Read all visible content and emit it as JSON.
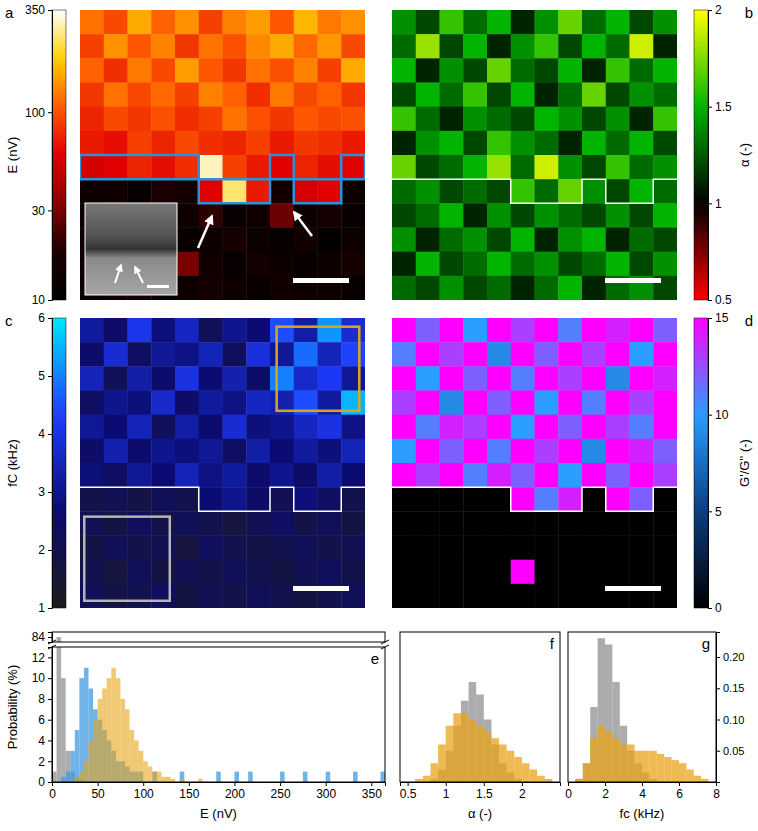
{
  "chart_data": [
    {
      "type": "heatmap",
      "panel": "a",
      "colorbar": {
        "label": "E (nV)",
        "range": [
          10,
          350
        ],
        "ticks": [
          10,
          30,
          100,
          350
        ],
        "log": true
      },
      "cells": [
        [
          120,
          95,
          160,
          110,
          140,
          90,
          130,
          150,
          105,
          170,
          125,
          140
        ],
        [
          90,
          140,
          105,
          130,
          85,
          120,
          100,
          135,
          160,
          115,
          145,
          95
        ],
        [
          110,
          80,
          125,
          95,
          150,
          105,
          85,
          120,
          100,
          130,
          90,
          160
        ],
        [
          85,
          120,
          95,
          115,
          90,
          130,
          110,
          80,
          125,
          95,
          110,
          85
        ],
        [
          75,
          95,
          85,
          100,
          80,
          90,
          120,
          100,
          85,
          105,
          95,
          100
        ],
        [
          70,
          65,
          90,
          75,
          95,
          80,
          75,
          90,
          70,
          85,
          80,
          70
        ],
        [
          55,
          60,
          75,
          65,
          80,
          300,
          90,
          70,
          60,
          75,
          65,
          60
        ],
        [
          14,
          15,
          12,
          18,
          16,
          60,
          250,
          70,
          15,
          55,
          60,
          14
        ],
        [
          12,
          15,
          18,
          13,
          14,
          20,
          12,
          15,
          28,
          13,
          16,
          12
        ],
        [
          15,
          11,
          13,
          16,
          12,
          14,
          17,
          13,
          12,
          15,
          11,
          14
        ],
        [
          13,
          16,
          12,
          14,
          30,
          15,
          12,
          16,
          13,
          12,
          14,
          17
        ],
        [
          12,
          14,
          15,
          12,
          13,
          16,
          14,
          12,
          15,
          14,
          13,
          12
        ]
      ]
    },
    {
      "type": "heatmap",
      "panel": "b",
      "colorbar": {
        "label": "α (-)",
        "range": [
          0.5,
          2
        ],
        "ticks": [
          0.5,
          1,
          1.5,
          2
        ]
      },
      "cells": [
        [
          1.4,
          1.2,
          1.6,
          1.3,
          1.5,
          1.1,
          1.4,
          1.7,
          1.3,
          1.5,
          1.2,
          1.4
        ],
        [
          1.3,
          1.8,
          1.2,
          1.5,
          1.1,
          1.4,
          1.6,
          1.2,
          1.5,
          1.3,
          1.9,
          1.1
        ],
        [
          1.5,
          1.1,
          1.4,
          1.2,
          1.7,
          1.3,
          1.2,
          1.5,
          1.1,
          1.6,
          1.3,
          1.5
        ],
        [
          1.2,
          1.5,
          1.3,
          1.6,
          1.2,
          1.5,
          1.1,
          1.3,
          1.7,
          1.2,
          1.4,
          1.3
        ],
        [
          1.6,
          1.3,
          1.1,
          1.4,
          1.3,
          1.2,
          1.5,
          1.4,
          1.2,
          1.4,
          1.1,
          1.6
        ],
        [
          1.1,
          1.4,
          1.5,
          1.2,
          1.6,
          1.4,
          1.3,
          1.1,
          1.5,
          1.3,
          1.5,
          1.2
        ],
        [
          1.7,
          1.2,
          1.3,
          1.5,
          1.8,
          1.3,
          1.9,
          1.4,
          1.2,
          1.6,
          1.3,
          1.4
        ],
        [
          1.3,
          1.4,
          1.2,
          1.3,
          1.2,
          1.6,
          1.3,
          1.7,
          1.4,
          1.2,
          1.5,
          1.3
        ],
        [
          1.2,
          1.3,
          1.5,
          1.1,
          1.4,
          1.2,
          1.4,
          1.3,
          1.2,
          1.4,
          1.2,
          1.5
        ],
        [
          1.4,
          1.1,
          1.3,
          1.4,
          1.2,
          1.5,
          1.1,
          1.4,
          1.5,
          1.1,
          1.3,
          1.2
        ],
        [
          1.1,
          1.5,
          1.2,
          1.3,
          1.5,
          1.3,
          1.4,
          1.2,
          1.3,
          1.5,
          1.2,
          1.4
        ],
        [
          1.3,
          1.2,
          1.4,
          1.2,
          1.3,
          1.1,
          1.3,
          1.5,
          1.1,
          1.3,
          1.4,
          1.2
        ]
      ]
    },
    {
      "type": "heatmap",
      "panel": "c",
      "colorbar": {
        "label": "fC (kHz)",
        "range": [
          1,
          6
        ],
        "ticks": [
          1,
          2,
          3,
          4,
          5,
          6
        ]
      },
      "cells": [
        [
          3.2,
          2.5,
          4.1,
          2.8,
          3.6,
          2.2,
          3.0,
          2.7,
          4.5,
          3.3,
          5.2,
          3.8
        ],
        [
          2.6,
          3.8,
          2.4,
          3.1,
          2.9,
          3.5,
          2.3,
          3.9,
          3.1,
          4.8,
          3.5,
          4.4
        ],
        [
          3.5,
          2.2,
          3.3,
          2.6,
          4.0,
          2.7,
          3.4,
          2.5,
          5.0,
          3.7,
          4.2,
          3.1
        ],
        [
          2.4,
          3.0,
          2.8,
          3.7,
          2.5,
          3.2,
          2.9,
          3.6,
          3.4,
          4.5,
          3.2,
          5.5
        ],
        [
          3.1,
          2.7,
          3.5,
          2.3,
          3.3,
          2.6,
          3.8,
          2.8,
          3.0,
          3.6,
          4.0,
          2.9
        ],
        [
          2.5,
          3.4,
          2.6,
          3.0,
          2.8,
          3.1,
          2.4,
          3.3,
          2.7,
          3.2,
          2.8,
          3.5
        ],
        [
          2.8,
          2.4,
          3.1,
          2.7,
          3.5,
          2.9,
          3.2,
          2.6,
          3.0,
          2.5,
          3.3,
          2.7
        ],
        [
          1.9,
          2.1,
          1.8,
          2.2,
          2.0,
          2.7,
          3.0,
          2.5,
          2.1,
          2.8,
          2.4,
          2.0
        ],
        [
          2.1,
          1.8,
          2.3,
          1.9,
          2.2,
          2.0,
          1.7,
          2.1,
          2.4,
          1.9,
          2.2,
          1.8
        ],
        [
          1.8,
          2.2,
          1.9,
          2.1,
          1.7,
          2.3,
          2.0,
          1.8,
          2.0,
          2.2,
          1.9,
          2.1
        ],
        [
          2.0,
          1.7,
          2.2,
          1.8,
          2.1,
          1.9,
          2.2,
          2.0,
          1.8,
          2.1,
          2.3,
          1.9
        ],
        [
          2.2,
          1.9,
          2.0,
          2.3,
          1.8,
          2.1,
          1.9,
          2.2,
          2.0,
          1.8,
          2.0,
          2.2
        ]
      ]
    },
    {
      "type": "heatmap",
      "panel": "d",
      "colorbar": {
        "label": "G'/G'' (-)",
        "range": [
          0,
          15
        ],
        "ticks": [
          0,
          5,
          10,
          15
        ]
      },
      "cells": [
        [
          15,
          12,
          15,
          10,
          15,
          13,
          15,
          11,
          15,
          14,
          15,
          12
        ],
        [
          11,
          15,
          13,
          15,
          9,
          15,
          12,
          15,
          13,
          15,
          10,
          15
        ],
        [
          15,
          10,
          15,
          12,
          15,
          11,
          15,
          13,
          15,
          9,
          15,
          14
        ],
        [
          13,
          15,
          9,
          15,
          12,
          15,
          10,
          15,
          11,
          15,
          13,
          15
        ],
        [
          15,
          11,
          14,
          13,
          15,
          10,
          15,
          12,
          15,
          13,
          11,
          15
        ],
        [
          10,
          15,
          12,
          15,
          11,
          15,
          13,
          15,
          9,
          15,
          14,
          12
        ],
        [
          15,
          13,
          15,
          11,
          14,
          12,
          15,
          10,
          15,
          12,
          15,
          13
        ],
        [
          0,
          0,
          0,
          0,
          0,
          15,
          11,
          14,
          0,
          15,
          12,
          0
        ],
        [
          0,
          0,
          0,
          0,
          0,
          0,
          0,
          0,
          0,
          0,
          0,
          0
        ],
        [
          0,
          0,
          0,
          0,
          0,
          0,
          0,
          0,
          0,
          0,
          0,
          0
        ],
        [
          0,
          0,
          0,
          0,
          0,
          15,
          0,
          0,
          0,
          0,
          0,
          0
        ],
        [
          0,
          0,
          0,
          0,
          0,
          0,
          0,
          0,
          0,
          0,
          0,
          0
        ]
      ]
    },
    {
      "type": "histogram",
      "panel": "e",
      "x_label": "E (nV)",
      "y_label": "Probability (%)",
      "bins": [
        0,
        5,
        10,
        15,
        20,
        25,
        30,
        35,
        40,
        45,
        50,
        55,
        60,
        65,
        70,
        75,
        80,
        85,
        90,
        95,
        100,
        105,
        110,
        115,
        120,
        125,
        130,
        135,
        140,
        145,
        150,
        155,
        160,
        165,
        170,
        175,
        180,
        185,
        190,
        195,
        200,
        205,
        210,
        215,
        220,
        225,
        230,
        235,
        240,
        245,
        250,
        255,
        260,
        265,
        270,
        275,
        280,
        285,
        290,
        295,
        300,
        305,
        310,
        315,
        320,
        325,
        330,
        335,
        340,
        345,
        350,
        355,
        360,
        365
      ],
      "series": [
        {
          "color": "#9e9e9e",
          "values": [
            1,
            84,
            10,
            3,
            1,
            0.5,
            0.3,
            0,
            0,
            0,
            0,
            0,
            0,
            0,
            0,
            0,
            0,
            0,
            0,
            0,
            0,
            0,
            0,
            0,
            0,
            0,
            0,
            0,
            0,
            0,
            0,
            0,
            0,
            0,
            0,
            0,
            0,
            0,
            0,
            0,
            0,
            0,
            0,
            0,
            0,
            0,
            0,
            0,
            0,
            0,
            0,
            0,
            0,
            0,
            0,
            0,
            0,
            0,
            0,
            0,
            0,
            0,
            0,
            0,
            0,
            0,
            0,
            0,
            0,
            0,
            0,
            0,
            0
          ]
        },
        {
          "color": "#3d9be0",
          "values": [
            0,
            0,
            0.5,
            1,
            3,
            5,
            10,
            11,
            9,
            7,
            6,
            5,
            4,
            3,
            2,
            2,
            1.5,
            1,
            1,
            1,
            0,
            0,
            1,
            0,
            0,
            0,
            0,
            0,
            1,
            0,
            0,
            0,
            0,
            0,
            0,
            0,
            1,
            0,
            0,
            0,
            1,
            0,
            0,
            1,
            0,
            0,
            0,
            0,
            0,
            0,
            1,
            0,
            0,
            0,
            0,
            1,
            0,
            0,
            0,
            0,
            1,
            0,
            0,
            0,
            0,
            0,
            1,
            0,
            0,
            0,
            0,
            0,
            1
          ]
        },
        {
          "color": "#e8a317",
          "values": [
            0,
            0,
            0,
            0,
            0,
            0.5,
            1,
            2,
            4,
            6,
            8,
            9,
            10,
            11,
            10,
            8,
            7,
            5,
            4,
            3,
            2,
            1.5,
            1,
            1,
            0.5,
            0.5,
            0.3,
            0,
            0.3,
            0,
            0,
            0,
            0.3,
            0,
            0,
            0,
            0,
            0,
            0,
            0,
            0,
            0,
            0,
            0,
            0,
            0,
            0,
            0,
            0,
            0,
            0,
            0,
            0,
            0,
            0,
            0,
            0,
            0,
            0,
            0,
            0,
            0,
            0,
            0,
            0,
            0,
            0,
            0,
            0,
            0,
            0,
            0,
            0
          ]
        }
      ],
      "xlim": [
        0,
        365
      ],
      "xticks": [
        0,
        50,
        100,
        150,
        200,
        250,
        300,
        350
      ],
      "ylim": [
        [
          0,
          13
        ],
        [
          83,
          85
        ]
      ],
      "yticks": [
        [
          0,
          2,
          4,
          6,
          8,
          10,
          12
        ],
        [
          84
        ]
      ]
    },
    {
      "type": "histogram",
      "panel": "f",
      "x_label": "α (-)",
      "bins": [
        0.5,
        0.6,
        0.7,
        0.8,
        0.9,
        1,
        1.1,
        1.2,
        1.3,
        1.4,
        1.5,
        1.6,
        1.7,
        1.8,
        1.9,
        2,
        2.1,
        2.2,
        2.3,
        2.4
      ],
      "series": [
        {
          "color": "#9e9e9e",
          "values": [
            0,
            0,
            0,
            0.005,
            0.02,
            0.05,
            0.09,
            0.13,
            0.16,
            0.14,
            0.1,
            0.06,
            0.03,
            0.015,
            0.005,
            0,
            0,
            0,
            0
          ]
        },
        {
          "color": "#e8a317",
          "values": [
            0,
            0.005,
            0.01,
            0.03,
            0.06,
            0.09,
            0.11,
            0.11,
            0.1,
            0.09,
            0.08,
            0.07,
            0.06,
            0.05,
            0.04,
            0.03,
            0.02,
            0.01,
            0.005
          ]
        }
      ],
      "xlim": [
        0.4,
        2.5
      ],
      "xticks": [
        0.5,
        1,
        1.5,
        2
      ],
      "ylim": [
        0,
        0.24
      ],
      "tick_labels": "x"
    },
    {
      "type": "histogram",
      "panel": "g",
      "x_label": "fc (kHz)",
      "bins": [
        0,
        0.4,
        0.8,
        1.2,
        1.6,
        2,
        2.4,
        2.8,
        3.2,
        3.6,
        4,
        4.4,
        4.8,
        5.2,
        5.6,
        6,
        6.4,
        6.8,
        7.2,
        7.6,
        8
      ],
      "series": [
        {
          "color": "#9e9e9e",
          "values": [
            0,
            0.005,
            0.03,
            0.12,
            0.23,
            0.22,
            0.16,
            0.09,
            0.05,
            0.03,
            0.015,
            0.005,
            0,
            0,
            0,
            0,
            0,
            0,
            0,
            0
          ]
        },
        {
          "color": "#e8a317",
          "values": [
            0,
            0.005,
            0.03,
            0.07,
            0.09,
            0.08,
            0.07,
            0.06,
            0.06,
            0.05,
            0.05,
            0.05,
            0.045,
            0.04,
            0.035,
            0.03,
            0.02,
            0.01,
            0.005,
            0
          ]
        }
      ],
      "xlim": [
        0,
        8
      ],
      "xticks": [
        0,
        2,
        4,
        6,
        8
      ],
      "ylim": [
        0,
        0.24
      ],
      "yticks": [
        0.05,
        {
          "value": 0.1,
          "label": "0.10"
        },
        0.15,
        {
          "value": 0.2,
          "label": "0.20"
        }
      ]
    }
  ]
}
